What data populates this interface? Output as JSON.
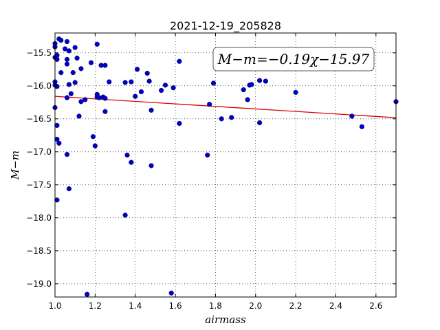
{
  "chart_data": {
    "type": "scatter",
    "title": "2021-12-19_205828",
    "xlabel": "airmass",
    "ylabel": "M−m",
    "xlim": [
      1.0,
      2.7
    ],
    "ylim": [
      -19.2,
      -15.2
    ],
    "y_inverted": true,
    "grid": true,
    "xticks": [
      1.0,
      1.2,
      1.4,
      1.6,
      1.8,
      2.0,
      2.2,
      2.4,
      2.6
    ],
    "xtick_labels": [
      "1.0",
      "1.2",
      "1.4",
      "1.6",
      "1.8",
      "2.0",
      "2.2",
      "2.4",
      "2.6"
    ],
    "yticks": [
      -15.5,
      -16.0,
      -16.5,
      -17.0,
      -17.5,
      -18.0,
      -18.5,
      -19.0
    ],
    "ytick_labels": [
      "−15.5",
      "−16.0",
      "−16.5",
      "−17.0",
      "−17.5",
      "−18.0",
      "−18.5",
      "−19.0"
    ],
    "annotation": "M−m=−0.19χ−15.97",
    "fit": {
      "slope": -0.19,
      "intercept": -15.97,
      "color": "#dd0000"
    },
    "point_color": "#0000cc",
    "points": [
      [
        1.0,
        -15.36
      ],
      [
        1.0,
        -15.41
      ],
      [
        1.02,
        -15.29
      ],
      [
        1.03,
        -15.31
      ],
      [
        1.06,
        -15.33
      ],
      [
        1.0,
        -15.57
      ],
      [
        1.01,
        -15.54
      ],
      [
        1.01,
        -15.6
      ],
      [
        1.05,
        -15.44
      ],
      [
        1.07,
        -15.47
      ],
      [
        1.1,
        -15.42
      ],
      [
        1.06,
        -15.6
      ],
      [
        1.06,
        -15.67
      ],
      [
        1.11,
        -15.58
      ],
      [
        1.21,
        -15.37
      ],
      [
        1.18,
        -15.65
      ],
      [
        1.23,
        -15.69
      ],
      [
        1.25,
        -15.69
      ],
      [
        1.13,
        -15.74
      ],
      [
        1.03,
        -15.8
      ],
      [
        1.09,
        -15.8
      ],
      [
        1.0,
        -15.94
      ],
      [
        1.0,
        -15.99
      ],
      [
        1.01,
        -16.01
      ],
      [
        1.07,
        -15.98
      ],
      [
        1.1,
        -15.95
      ],
      [
        1.08,
        -16.12
      ],
      [
        1.06,
        -16.18
      ],
      [
        1.15,
        -16.21
      ],
      [
        1.13,
        -16.24
      ],
      [
        1.21,
        -16.13
      ],
      [
        1.21,
        -16.17
      ],
      [
        1.22,
        -16.18
      ],
      [
        1.24,
        -16.17
      ],
      [
        1.25,
        -16.19
      ],
      [
        1.27,
        -15.94
      ],
      [
        1.35,
        -15.95
      ],
      [
        1.38,
        -15.94
      ],
      [
        1.41,
        -15.75
      ],
      [
        1.46,
        -15.81
      ],
      [
        1.43,
        -16.09
      ],
      [
        1.47,
        -15.93
      ],
      [
        1.4,
        -16.16
      ],
      [
        1.53,
        -16.07
      ],
      [
        1.55,
        -15.99
      ],
      [
        1.59,
        -16.03
      ],
      [
        1.62,
        -15.63
      ],
      [
        1.79,
        -15.96
      ],
      [
        1.0,
        -16.33
      ],
      [
        1.12,
        -16.46
      ],
      [
        1.25,
        -16.39
      ],
      [
        1.48,
        -16.37
      ],
      [
        1.62,
        -16.57
      ],
      [
        1.77,
        -16.28
      ],
      [
        1.83,
        -16.5
      ],
      [
        1.88,
        -16.48
      ],
      [
        1.94,
        -16.06
      ],
      [
        1.96,
        -16.21
      ],
      [
        1.97,
        -15.99
      ],
      [
        1.98,
        -15.98
      ],
      [
        2.02,
        -15.92
      ],
      [
        2.05,
        -15.93
      ],
      [
        2.2,
        -16.1
      ],
      [
        2.02,
        -16.56
      ],
      [
        2.48,
        -16.46
      ],
      [
        2.53,
        -16.62
      ],
      [
        2.7,
        -16.24
      ],
      [
        1.01,
        -16.6
      ],
      [
        1.01,
        -16.81
      ],
      [
        1.02,
        -16.87
      ],
      [
        1.19,
        -16.77
      ],
      [
        1.2,
        -16.91
      ],
      [
        1.06,
        -17.04
      ],
      [
        1.36,
        -17.05
      ],
      [
        1.38,
        -17.16
      ],
      [
        1.48,
        -17.21
      ],
      [
        1.76,
        -17.05
      ],
      [
        1.07,
        -17.56
      ],
      [
        1.01,
        -17.73
      ],
      [
        1.35,
        -17.96
      ],
      [
        1.16,
        -19.16
      ],
      [
        1.58,
        -19.14
      ]
    ]
  }
}
